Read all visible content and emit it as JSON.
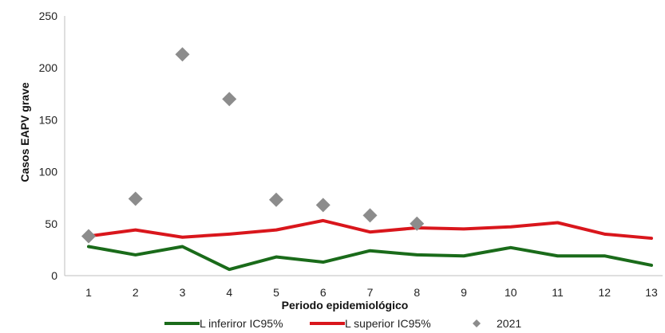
{
  "chart_data": {
    "type": "line",
    "xlabel": "Periodo epidemiológico",
    "ylabel": "Casos EAPV grave",
    "categories": [
      "1",
      "2",
      "3",
      "4",
      "5",
      "6",
      "7",
      "8",
      "9",
      "10",
      "11",
      "12",
      "13"
    ],
    "yticks": [
      "0",
      "50",
      "100",
      "150",
      "200",
      "250"
    ],
    "ylim": [
      0,
      250
    ],
    "grid": false,
    "legend_position": "bottom",
    "series": [
      {
        "name": "L inferiror IC95%",
        "kind": "line",
        "color": "#1a6b1a",
        "values": [
          28,
          20,
          28,
          6,
          18,
          13,
          24,
          20,
          19,
          27,
          19,
          19,
          10
        ]
      },
      {
        "name": "L superior IC95%",
        "kind": "line",
        "color": "#d9161c",
        "values": [
          38,
          44,
          37,
          40,
          44,
          53,
          42,
          46,
          45,
          47,
          51,
          40,
          36
        ]
      },
      {
        "name": "2021",
        "kind": "scatter",
        "marker": "diamond",
        "color": "#8c8c8c",
        "values": [
          38,
          74,
          213,
          170,
          73,
          68,
          58,
          50,
          null,
          null,
          null,
          null,
          null
        ]
      }
    ]
  }
}
